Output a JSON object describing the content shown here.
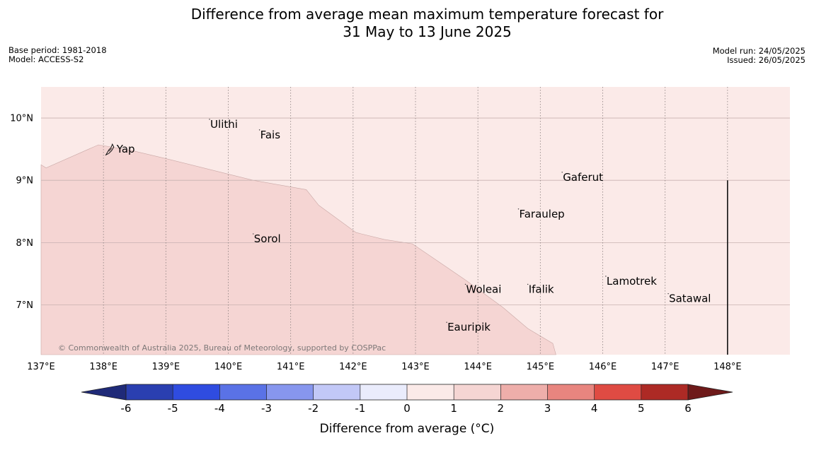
{
  "title": {
    "line1": "Difference from average mean maximum temperature forecast for",
    "line2": "31 May to 13 June 2025"
  },
  "meta": {
    "base_period": "Base period: 1981-2018",
    "model": "Model: ACCESS-S2",
    "model_run": "Model run: 24/05/2025",
    "issued": "Issued: 26/05/2025"
  },
  "map": {
    "lon_range": [
      137,
      149
    ],
    "lat_range": [
      6.2,
      10.5
    ],
    "lon_ticks": [
      {
        "v": 137,
        "label": "137°E"
      },
      {
        "v": 138,
        "label": "138°E"
      },
      {
        "v": 139,
        "label": "139°E"
      },
      {
        "v": 140,
        "label": "140°E"
      },
      {
        "v": 141,
        "label": "141°E"
      },
      {
        "v": 142,
        "label": "142°E"
      },
      {
        "v": 143,
        "label": "143°E"
      },
      {
        "v": 144,
        "label": "144°E"
      },
      {
        "v": 145,
        "label": "145°E"
      },
      {
        "v": 146,
        "label": "146°E"
      },
      {
        "v": 147,
        "label": "147°E"
      },
      {
        "v": 148,
        "label": "148°E"
      }
    ],
    "lat_ticks": [
      {
        "v": 10,
        "label": "10°N"
      },
      {
        "v": 9,
        "label": "9°N"
      },
      {
        "v": 8,
        "label": "8°N"
      },
      {
        "v": 7,
        "label": "7°N"
      }
    ],
    "regions": [
      {
        "category": "0 to 1",
        "color": "#fbeae8",
        "extent": "whole map"
      },
      {
        "category": "1 to 2",
        "color": "#f5d5d3",
        "boundary": [
          [
            137,
            9.25
          ],
          [
            137.08,
            9.2
          ],
          [
            137.92,
            9.57
          ],
          [
            138.45,
            9.48
          ],
          [
            139,
            9.35
          ],
          [
            140,
            9.1
          ],
          [
            140.4,
            9.0
          ],
          [
            141.25,
            8.85
          ],
          [
            141.45,
            8.6
          ],
          [
            142.05,
            8.16
          ],
          [
            142.5,
            8.05
          ],
          [
            142.95,
            7.98
          ],
          [
            143.8,
            7.4
          ],
          [
            144.4,
            6.96
          ],
          [
            144.8,
            6.62
          ],
          [
            145.2,
            6.38
          ],
          [
            145.25,
            6.2
          ],
          [
            137,
            6.2
          ]
        ]
      }
    ],
    "places": [
      {
        "name": "Yap",
        "lon": 138.12,
        "lat": 9.5
      },
      {
        "name": "Ulithi",
        "lon": 139.7,
        "lat": 9.9
      },
      {
        "name": "Fais",
        "lon": 140.5,
        "lat": 9.73
      },
      {
        "name": "Gaferut",
        "lon": 145.35,
        "lat": 9.05
      },
      {
        "name": "Faraulep",
        "lon": 144.65,
        "lat": 8.46
      },
      {
        "name": "Sorol",
        "lon": 140.4,
        "lat": 8.06
      },
      {
        "name": "Lamotrek",
        "lon": 146.05,
        "lat": 7.38
      },
      {
        "name": "Satawal",
        "lon": 147.05,
        "lat": 7.1
      },
      {
        "name": "Woleai",
        "lon": 143.8,
        "lat": 7.25
      },
      {
        "name": "Ifalik",
        "lon": 144.8,
        "lat": 7.25
      },
      {
        "name": "Eauripik",
        "lon": 143.5,
        "lat": 6.64
      }
    ],
    "boundary_line": {
      "lon": 148,
      "lat_from": 6.2,
      "lat_to": 9.0
    },
    "copyright": "© Commonwealth of Australia 2025, Bureau of Meteorology, supported by COSPPac"
  },
  "colorbar": {
    "label": "Difference from average (°C)",
    "ticks": [
      {
        "v": -6,
        "label": "-6"
      },
      {
        "v": -5,
        "label": "-5"
      },
      {
        "v": -4,
        "label": "-4"
      },
      {
        "v": -3,
        "label": "-3"
      },
      {
        "v": -2,
        "label": "-2"
      },
      {
        "v": -1,
        "label": "-1"
      },
      {
        "v": 0,
        "label": "0"
      },
      {
        "v": 1,
        "label": "1"
      },
      {
        "v": 2,
        "label": "2"
      },
      {
        "v": 3,
        "label": "3"
      },
      {
        "v": 4,
        "label": "4"
      },
      {
        "v": 5,
        "label": "5"
      },
      {
        "v": 6,
        "label": "6"
      }
    ],
    "below_color": "#1f2a78",
    "above_color": "#6e1a1a",
    "bins": [
      {
        "from": -6,
        "to": -5,
        "color": "#2a3fb0"
      },
      {
        "from": -5,
        "to": -4,
        "color": "#2f4ce0"
      },
      {
        "from": -4,
        "to": -3,
        "color": "#5a72e6"
      },
      {
        "from": -3,
        "to": -2,
        "color": "#8796ee"
      },
      {
        "from": -2,
        "to": -1,
        "color": "#c2c8f7"
      },
      {
        "from": -1,
        "to": 0,
        "color": "#eaecfc"
      },
      {
        "from": 0,
        "to": 1,
        "color": "#fbeae8"
      },
      {
        "from": 1,
        "to": 2,
        "color": "#f5d5d3"
      },
      {
        "from": 2,
        "to": 3,
        "color": "#eeaeaa"
      },
      {
        "from": 3,
        "to": 4,
        "color": "#e8857f"
      },
      {
        "from": 4,
        "to": 5,
        "color": "#df4b43"
      },
      {
        "from": 5,
        "to": 6,
        "color": "#ad2a25"
      }
    ]
  }
}
